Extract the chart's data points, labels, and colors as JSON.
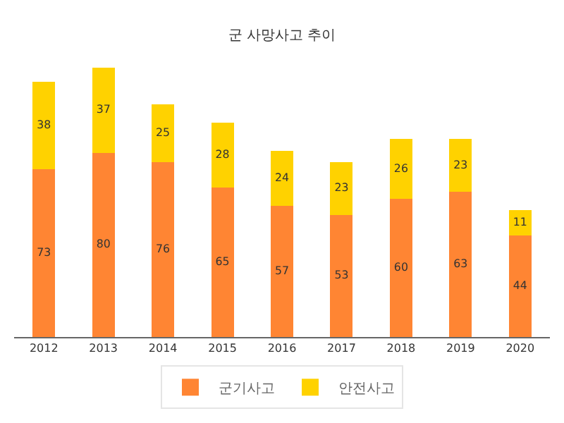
{
  "chart_data": {
    "type": "bar",
    "title": "군 사망사고 추이",
    "categories": [
      "2012",
      "2013",
      "2014",
      "2015",
      "2016",
      "2017",
      "2018",
      "2019",
      "2020"
    ],
    "stacked": true,
    "data_labels": true,
    "legend": "bottom",
    "tick_labels": "x",
    "series": [
      {
        "name": "군기사고",
        "color": "#ff8533",
        "values": [
          73,
          80,
          76,
          65,
          57,
          53,
          60,
          63,
          44
        ]
      },
      {
        "name": "안전사고",
        "color": "#ffd200",
        "values": [
          38,
          37,
          25,
          28,
          24,
          23,
          26,
          23,
          11
        ]
      }
    ]
  }
}
